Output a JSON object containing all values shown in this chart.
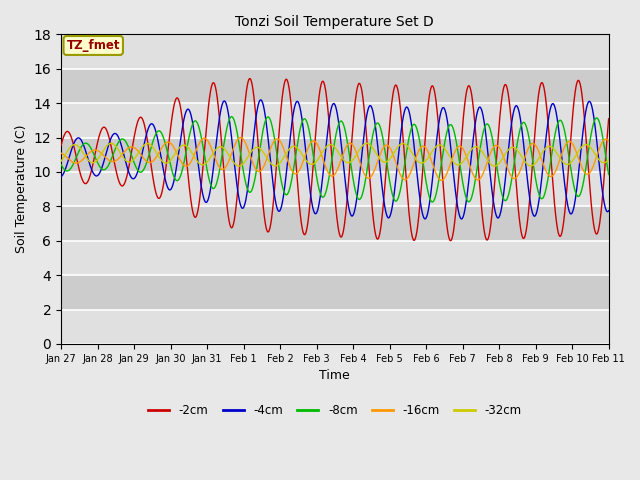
{
  "title": "Tonzi Soil Temperature Set D",
  "xlabel": "Time",
  "ylabel": "Soil Temperature (C)",
  "ylim": [
    0,
    18
  ],
  "yticks": [
    0,
    2,
    4,
    6,
    8,
    10,
    12,
    14,
    16,
    18
  ],
  "annotation_text": "TZ_fmet",
  "annotation_bg": "#ffffcc",
  "annotation_fg": "#990000",
  "annotation_border": "#999900",
  "legend_labels": [
    "-2cm",
    "-4cm",
    "-8cm",
    "-16cm",
    "-32cm"
  ],
  "line_colors": [
    "#cc0000",
    "#0000cc",
    "#00bb00",
    "#ff9900",
    "#cccc00"
  ],
  "xtick_labels": [
    "Jan 27",
    "Jan 28",
    "Jan 29",
    "Jan 30",
    "Jan 31",
    "Feb 1",
    "Feb 2",
    "Feb 3",
    "Feb 4",
    "Feb 5",
    "Feb 6",
    "Feb 7",
    "Feb 8",
    "Feb 9",
    "Feb 10",
    "Feb 11"
  ],
  "figsize": [
    6.4,
    4.8
  ],
  "dpi": 100
}
